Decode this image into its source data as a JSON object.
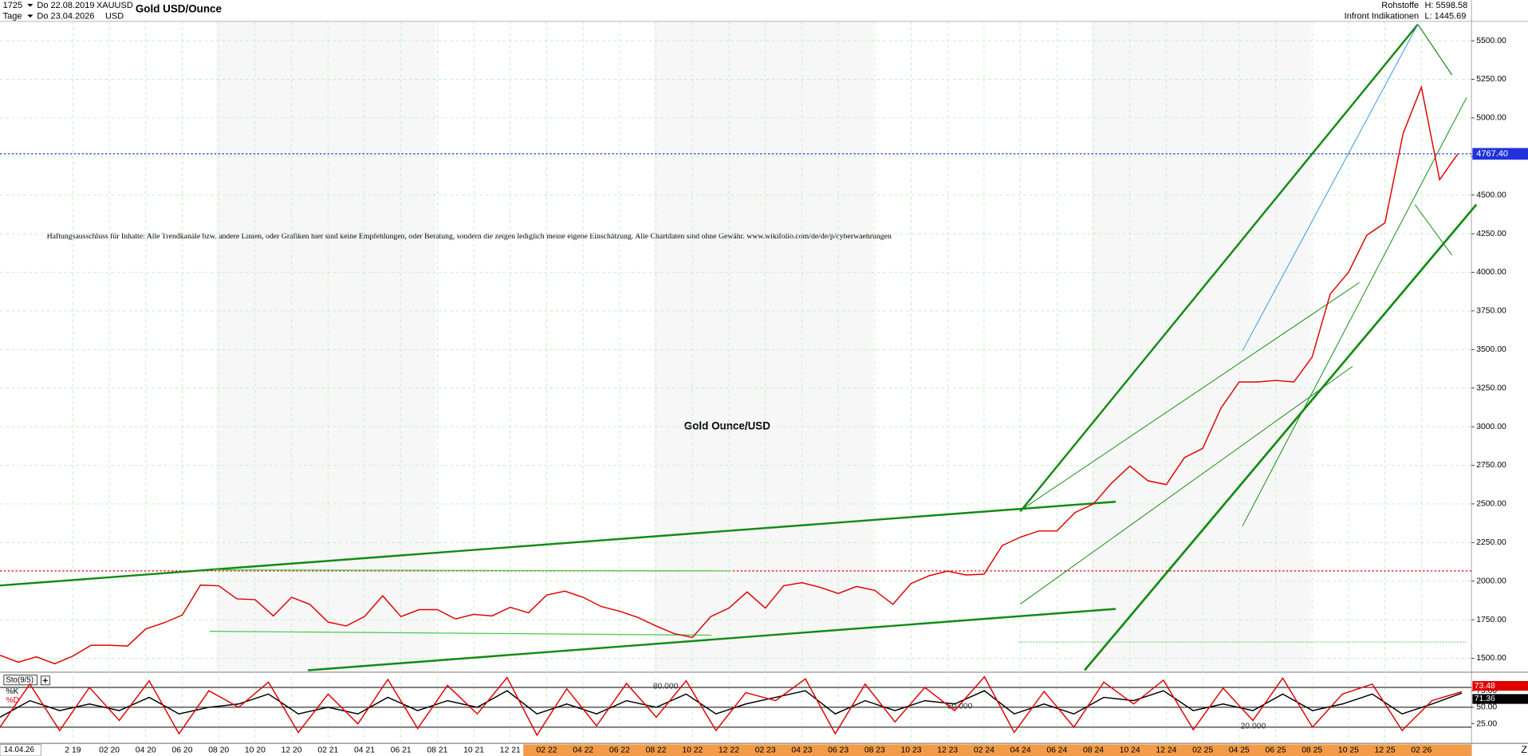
{
  "header": {
    "count": "1725",
    "from": "Do 22.08.2019",
    "symbol": "XAUUSD",
    "period": "Tage",
    "to": "Do 23.04.2026",
    "currency": "USD",
    "title": "Gold USD/Ounce",
    "market": "Rohstoffe",
    "source": "Infront Indikationen",
    "high": "H: 5598.58",
    "low": "L: 1445.69"
  },
  "chart_data": [
    {
      "type": "line",
      "annotation": "Gold Ounce/USD",
      "disclaimer": "Haftungsausschluss für Inhalte: Alle Trendkanäle bzw. andere Linien, oder Grafiken hier sind keine Empfehlungen, oder Beratung, sondern die zeigen lediglich meine eigene Einschätzung. Alle Chartdaten sind ohne Gewähr.  www.wikifolio.com/de/de/p/cyberwaehrungen",
      "date_label": "14.04.26",
      "xtick_labels": [
        "2 19",
        "02 20",
        "04 20",
        "06 20",
        "08 20",
        "10 20",
        "12 20",
        "02 21",
        "04 21",
        "06 21",
        "08 21",
        "10 21",
        "12 21",
        "02 22",
        "04 22",
        "06 22",
        "08 22",
        "10 22",
        "12 22",
        "02 23",
        "04 23",
        "06 23",
        "08 23",
        "10 23",
        "12 23",
        "02 24",
        "04 24",
        "06 24",
        "08 24",
        "10 24",
        "12 24",
        "02 25",
        "04 25",
        "06 25",
        "08 25",
        "10 25",
        "12 25",
        "02 26"
      ],
      "series": [
        {
          "color": "#e00000",
          "values": [
            1520,
            1475,
            1510,
            1465,
            1515,
            1585,
            1585,
            1580,
            1690,
            1730,
            1780,
            1975,
            1970,
            1885,
            1880,
            1775,
            1895,
            1850,
            1735,
            1710,
            1770,
            1905,
            1770,
            1815,
            1815,
            1755,
            1785,
            1775,
            1830,
            1795,
            1910,
            1935,
            1895,
            1835,
            1805,
            1765,
            1710,
            1660,
            1635,
            1770,
            1825,
            1930,
            1825,
            1970,
            1990,
            1960,
            1920,
            1965,
            1940,
            1850,
            1985,
            2035,
            2065,
            2040,
            2045,
            2230,
            2285,
            2325,
            2325,
            2445,
            2500,
            2635,
            2745,
            2650,
            2625,
            2800,
            2860,
            3120,
            3290,
            3290,
            3300,
            3290,
            3450,
            3860,
            4000,
            4240,
            4320,
            4900,
            5200,
            4600,
            4767.4
          ]
        }
      ],
      "last_price": {
        "value": 4767.4,
        "label": "4767.40"
      },
      "ylim": [
        1410,
        5625
      ],
      "yticks": [
        {
          "value": 1500,
          "label": "1500.00"
        },
        {
          "value": 1750,
          "label": "1750.00"
        },
        {
          "value": 2000,
          "label": "2000.00"
        },
        {
          "value": 2250,
          "label": "2250.00"
        },
        {
          "value": 2500,
          "label": "2500.00"
        },
        {
          "value": 2750,
          "label": "2750.00"
        },
        {
          "value": 3000,
          "label": "3000.00"
        },
        {
          "value": 3250,
          "label": "3250.00"
        },
        {
          "value": 3500,
          "label": "3500.00"
        },
        {
          "value": 3750,
          "label": "3750.00"
        },
        {
          "value": 4000,
          "label": "4000.00"
        },
        {
          "value": 4250,
          "label": "4250.00"
        },
        {
          "value": 4500,
          "label": "4500.00"
        },
        {
          "value": 4750,
          "label": "4750.00"
        },
        {
          "value": 5000,
          "label": "5000.00"
        },
        {
          "value": 5250,
          "label": "5250.00"
        },
        {
          "value": 5500,
          "label": "5500.00"
        }
      ],
      "grid": true
    },
    {
      "type": "line",
      "title": "Sto(9/5)",
      "series": [
        {
          "name": "%K",
          "color": "#e00000",
          "values": [
            20,
            85,
            15,
            80,
            30,
            90,
            10,
            75,
            50,
            88,
            12,
            70,
            25,
            92,
            18,
            83,
            40,
            95,
            8,
            78,
            22,
            86,
            35,
            90,
            15,
            72,
            60,
            93,
            10,
            85,
            28,
            80,
            45,
            96,
            12,
            74,
            20,
            88,
            55,
            91,
            16,
            79,
            30,
            94,
            20,
            70,
            85,
            15,
            60,
            73.48
          ]
        },
        {
          "name": "%D",
          "color": "#000000",
          "values": [
            35,
            60,
            45,
            55,
            45,
            65,
            40,
            50,
            55,
            70,
            40,
            50,
            40,
            65,
            45,
            60,
            50,
            75,
            40,
            55,
            40,
            60,
            50,
            70,
            40,
            55,
            65,
            75,
            40,
            60,
            45,
            60,
            55,
            75,
            40,
            55,
            40,
            65,
            60,
            75,
            45,
            55,
            45,
            70,
            45,
            55,
            70,
            40,
            55,
            71.36
          ]
        }
      ],
      "levels": [
        {
          "value": 80,
          "label": "80.000"
        },
        {
          "value": 50,
          "label": "50.000"
        },
        {
          "value": 20,
          "label": "20.000"
        }
      ],
      "ylim": [
        0,
        100
      ],
      "yticks": [
        {
          "value": 75,
          "label": "75.00"
        },
        {
          "value": 50,
          "label": "50.00"
        },
        {
          "value": 25,
          "label": "25.00"
        }
      ]
    }
  ]
}
